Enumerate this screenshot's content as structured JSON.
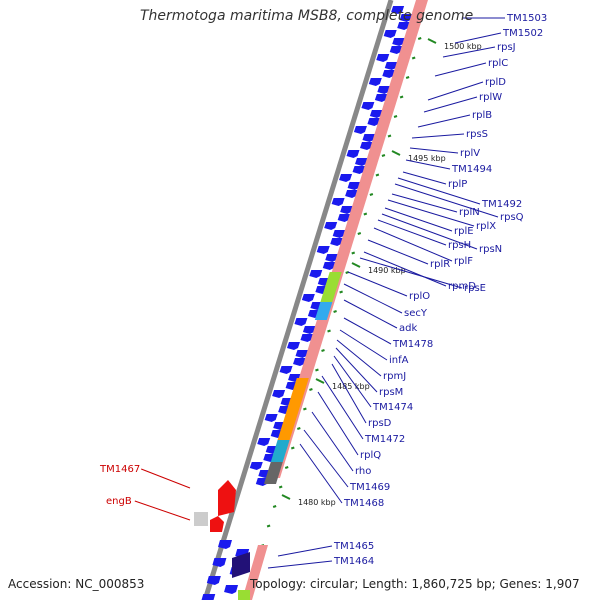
{
  "title": "Thermotoga maritima MSB8, complete genome",
  "accession": "Accession: NC_000853",
  "topology": "Topology: circular; Length: 1,860,725 bp; Genes: 1,907",
  "colors": {
    "label_blue": "#1a1aa0",
    "label_red": "#cc0000",
    "gene_blue": "#1a1aee",
    "gene_red": "#ee1111",
    "rna_track": "#f09090",
    "backbone": "#888888",
    "tick_green": "#228822"
  },
  "kbp_ticks": [
    {
      "label": "1500 kbp"
    },
    {
      "label": "1495 kbp"
    },
    {
      "label": "1490 kbp"
    },
    {
      "label": "1485 kbp"
    },
    {
      "label": "1480 kbp"
    }
  ],
  "right_labels": [
    "TM1503",
    "TM1502",
    "rpsJ",
    "rplC",
    "rplD",
    "rplW",
    "rplB",
    "rpsS",
    "rplV",
    "TM1494",
    "rplP",
    "TM1492",
    "rpsQ",
    "rplN",
    "rplX",
    "rplE",
    "rpsN",
    "rpsH",
    "rplF",
    "rplR",
    "rpmD",
    "rpsE",
    "rplO",
    "secY",
    "adk",
    "TM1478",
    "infA",
    "rpmJ",
    "rpsM",
    "TM1474",
    "rpsD",
    "TM1472",
    "rplQ",
    "rho",
    "TM1469",
    "TM1468",
    "TM1465",
    "TM1464"
  ],
  "left_labels": [
    "TM1467",
    "engB"
  ]
}
